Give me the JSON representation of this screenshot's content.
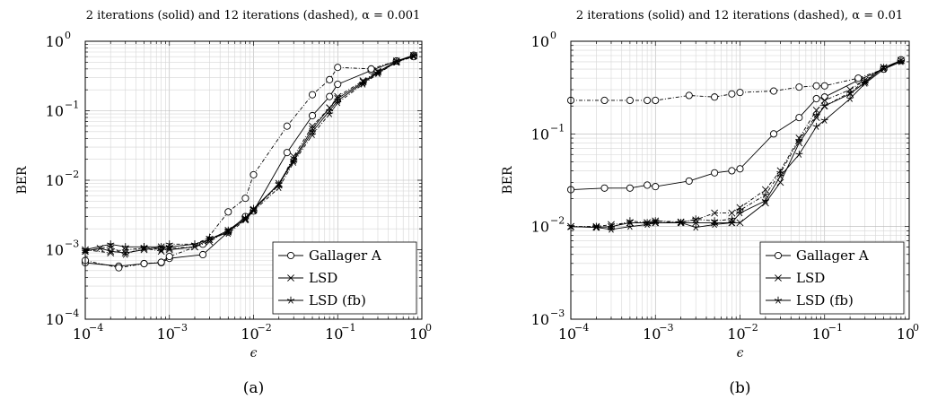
{
  "figure": {
    "panels": [
      {
        "caption": "(a)",
        "title": "2 iterations (solid) and 12 iterations (dashed), α = 0.001",
        "xlabel": "ϵ",
        "ylabel": "BER"
      },
      {
        "caption": "(b)",
        "title": "2 iterations (solid) and 12 iterations (dashed), α = 0.01",
        "xlabel": "ϵ",
        "ylabel": "BER"
      }
    ]
  },
  "chart_data": [
    {
      "type": "line",
      "title": "2 iterations (solid) and 12 iterations (dashed), α = 0.001",
      "xlabel": "ϵ",
      "ylabel": "BER",
      "xscale": "log",
      "yscale": "log",
      "xlim": [
        0.0001,
        1
      ],
      "ylim": [
        0.0001,
        1
      ],
      "xticks": [
        0.0001,
        0.001,
        0.01,
        0.1,
        1
      ],
      "xtick_labels": [
        "10",
        "10",
        "10",
        "10",
        "10"
      ],
      "xtick_exponents": [
        "−4",
        "−3",
        "−2",
        "−1",
        "0"
      ],
      "yticks": [
        0.0001,
        0.001,
        0.01,
        0.1,
        1
      ],
      "ytick_labels": [
        "10",
        "10",
        "10",
        "10",
        "10"
      ],
      "ytick_exponents": [
        "−4",
        "−3",
        "−2",
        "−1",
        "0"
      ],
      "grid": true,
      "legend_position": "bottom-right",
      "legend": [
        {
          "label": "Gallager A",
          "marker": "circle"
        },
        {
          "label": "LSD",
          "marker": "x"
        },
        {
          "label": "LSD (fb)",
          "marker": "star"
        }
      ],
      "series": [
        {
          "legend_index": 0,
          "style": "solid",
          "x": [
            0.0001,
            0.00025,
            0.0005,
            0.0008,
            0.001,
            0.0025,
            0.005,
            0.008,
            0.01,
            0.025,
            0.05,
            0.08,
            0.1,
            0.25,
            0.5,
            0.8
          ],
          "y": [
            0.00065,
            0.00058,
            0.00063,
            0.00065,
            0.00075,
            0.00085,
            0.0018,
            0.003,
            0.0036,
            0.025,
            0.085,
            0.16,
            0.24,
            0.38,
            0.52,
            0.63
          ]
        },
        {
          "legend_index": 0,
          "style": "dashed",
          "x": [
            0.0001,
            0.00025,
            0.0005,
            0.0008,
            0.001,
            0.0025,
            0.005,
            0.008,
            0.01,
            0.025,
            0.05,
            0.08,
            0.1,
            0.25,
            0.5,
            0.8
          ],
          "y": [
            0.0007,
            0.00055,
            0.00063,
            0.00066,
            0.0008,
            0.0012,
            0.0035,
            0.0055,
            0.012,
            0.06,
            0.17,
            0.28,
            0.42,
            0.4,
            0.52,
            0.6
          ]
        },
        {
          "legend_index": 1,
          "style": "solid",
          "x": [
            0.0001,
            0.00015,
            0.0002,
            0.0003,
            0.0005,
            0.0008,
            0.001,
            0.002,
            0.003,
            0.005,
            0.008,
            0.01,
            0.02,
            0.03,
            0.05,
            0.08,
            0.1,
            0.2,
            0.3,
            0.5,
            0.8
          ],
          "y": [
            0.00095,
            0.00105,
            0.00095,
            0.0009,
            0.001,
            0.0011,
            0.001,
            0.0011,
            0.0014,
            0.0018,
            0.0028,
            0.0037,
            0.009,
            0.02,
            0.055,
            0.11,
            0.15,
            0.26,
            0.36,
            0.52,
            0.62
          ]
        },
        {
          "legend_index": 1,
          "style": "dashed",
          "x": [
            0.0001,
            0.0002,
            0.0003,
            0.0005,
            0.0008,
            0.001,
            0.002,
            0.003,
            0.005,
            0.008,
            0.01,
            0.02,
            0.03,
            0.05,
            0.08,
            0.1,
            0.2,
            0.3,
            0.5,
            0.8
          ],
          "y": [
            0.001,
            0.0009,
            0.001,
            0.00105,
            0.00095,
            0.00105,
            0.0011,
            0.0013,
            0.0019,
            0.0027,
            0.0038,
            0.0085,
            0.022,
            0.06,
            0.11,
            0.16,
            0.27,
            0.37,
            0.5,
            0.62
          ]
        },
        {
          "legend_index": 2,
          "style": "solid",
          "x": [
            0.0001,
            0.0002,
            0.0003,
            0.0005,
            0.0008,
            0.001,
            0.002,
            0.003,
            0.005,
            0.008,
            0.01,
            0.02,
            0.03,
            0.05,
            0.08,
            0.1,
            0.2,
            0.3,
            0.5,
            0.8
          ],
          "y": [
            0.001,
            0.0012,
            0.0011,
            0.0011,
            0.0011,
            0.0011,
            0.0012,
            0.0014,
            0.0019,
            0.0029,
            0.0039,
            0.0088,
            0.019,
            0.05,
            0.1,
            0.14,
            0.25,
            0.35,
            0.5,
            0.62
          ]
        },
        {
          "legend_index": 2,
          "style": "dashed",
          "x": [
            0.0001,
            0.0002,
            0.0003,
            0.0005,
            0.0008,
            0.001,
            0.002,
            0.003,
            0.005,
            0.008,
            0.01,
            0.02,
            0.03,
            0.05,
            0.08,
            0.1,
            0.2,
            0.3,
            0.5,
            0.8
          ],
          "y": [
            0.00095,
            0.0011,
            0.00085,
            0.0011,
            0.001,
            0.0012,
            0.0012,
            0.0015,
            0.0017,
            0.0027,
            0.0036,
            0.0078,
            0.018,
            0.045,
            0.09,
            0.13,
            0.24,
            0.34,
            0.5,
            0.6
          ]
        }
      ]
    },
    {
      "type": "line",
      "title": "2 iterations (solid) and 12 iterations (dashed), α = 0.01",
      "xlabel": "ϵ",
      "ylabel": "BER",
      "xscale": "log",
      "yscale": "log",
      "xlim": [
        0.0001,
        1
      ],
      "ylim": [
        0.001,
        1
      ],
      "xticks": [
        0.0001,
        0.001,
        0.01,
        0.1,
        1
      ],
      "xtick_labels": [
        "10",
        "10",
        "10",
        "10",
        "10"
      ],
      "xtick_exponents": [
        "−4",
        "−3",
        "−2",
        "−1",
        "0"
      ],
      "yticks": [
        0.001,
        0.01,
        0.1,
        1
      ],
      "ytick_labels": [
        "10",
        "10",
        "10",
        "10"
      ],
      "ytick_exponents": [
        "−3",
        "−2",
        "−1",
        "0"
      ],
      "grid": true,
      "legend_position": "bottom-right",
      "legend": [
        {
          "label": "Gallager A",
          "marker": "circle"
        },
        {
          "label": "LSD",
          "marker": "x"
        },
        {
          "label": "LSD (fb)",
          "marker": "star"
        }
      ],
      "series": [
        {
          "legend_index": 0,
          "style": "solid",
          "x": [
            0.0001,
            0.00025,
            0.0005,
            0.0008,
            0.001,
            0.0025,
            0.005,
            0.008,
            0.01,
            0.025,
            0.05,
            0.08,
            0.1,
            0.25,
            0.5,
            0.8
          ],
          "y": [
            0.025,
            0.026,
            0.026,
            0.028,
            0.027,
            0.031,
            0.038,
            0.04,
            0.042,
            0.1,
            0.15,
            0.24,
            0.25,
            0.38,
            0.5,
            0.62
          ]
        },
        {
          "legend_index": 0,
          "style": "dashed",
          "x": [
            0.0001,
            0.00025,
            0.0005,
            0.0008,
            0.001,
            0.0025,
            0.005,
            0.008,
            0.01,
            0.025,
            0.05,
            0.08,
            0.1,
            0.25,
            0.5,
            0.8
          ],
          "y": [
            0.23,
            0.23,
            0.23,
            0.23,
            0.23,
            0.26,
            0.25,
            0.27,
            0.28,
            0.29,
            0.32,
            0.33,
            0.33,
            0.4,
            0.5,
            0.63
          ]
        },
        {
          "legend_index": 1,
          "style": "solid",
          "x": [
            0.0001,
            0.0002,
            0.0003,
            0.0005,
            0.0008,
            0.001,
            0.002,
            0.003,
            0.005,
            0.008,
            0.01,
            0.02,
            0.03,
            0.05,
            0.08,
            0.1,
            0.2,
            0.3,
            0.5,
            0.8
          ],
          "y": [
            0.01,
            0.0098,
            0.01,
            0.011,
            0.011,
            0.011,
            0.011,
            0.011,
            0.011,
            0.011,
            0.011,
            0.018,
            0.03,
            0.08,
            0.15,
            0.2,
            0.27,
            0.36,
            0.52,
            0.62
          ]
        },
        {
          "legend_index": 1,
          "style": "dashed",
          "x": [
            0.0001,
            0.0002,
            0.0003,
            0.0005,
            0.0008,
            0.001,
            0.002,
            0.003,
            0.005,
            0.008,
            0.01,
            0.02,
            0.03,
            0.05,
            0.08,
            0.1,
            0.2,
            0.3,
            0.5,
            0.8
          ],
          "y": [
            0.01,
            0.01,
            0.0105,
            0.011,
            0.011,
            0.0115,
            0.0112,
            0.0118,
            0.014,
            0.014,
            0.016,
            0.025,
            0.04,
            0.09,
            0.18,
            0.23,
            0.3,
            0.38,
            0.52,
            0.62
          ]
        },
        {
          "legend_index": 2,
          "style": "solid",
          "x": [
            0.0001,
            0.0002,
            0.0003,
            0.0005,
            0.0008,
            0.001,
            0.002,
            0.003,
            0.005,
            0.008,
            0.01,
            0.02,
            0.03,
            0.05,
            0.08,
            0.1,
            0.2,
            0.3,
            0.5,
            0.8
          ],
          "y": [
            0.01,
            0.0098,
            0.0093,
            0.01,
            0.0105,
            0.011,
            0.011,
            0.0098,
            0.0105,
            0.011,
            0.014,
            0.019,
            0.035,
            0.06,
            0.12,
            0.14,
            0.24,
            0.35,
            0.5,
            0.6
          ]
        },
        {
          "legend_index": 2,
          "style": "dashed",
          "x": [
            0.0001,
            0.0002,
            0.0003,
            0.0005,
            0.0008,
            0.001,
            0.002,
            0.003,
            0.005,
            0.008,
            0.01,
            0.02,
            0.03,
            0.05,
            0.08,
            0.1,
            0.2,
            0.3,
            0.5,
            0.8
          ],
          "y": [
            0.01,
            0.01,
            0.0098,
            0.0115,
            0.011,
            0.0115,
            0.011,
            0.012,
            0.0115,
            0.012,
            0.015,
            0.022,
            0.038,
            0.085,
            0.16,
            0.2,
            0.28,
            0.37,
            0.52,
            0.61
          ]
        }
      ]
    }
  ]
}
